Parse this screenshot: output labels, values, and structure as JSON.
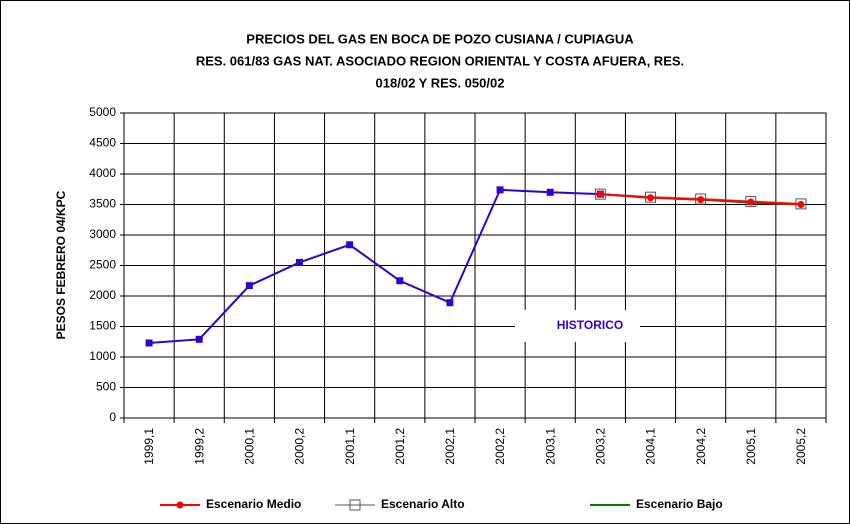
{
  "chart_data": {
    "type": "line",
    "title": [
      "PRECIOS DEL GAS EN BOCA DE POZO CUSIANA / CUPIAGUA",
      "RES. 061/83 GAS NAT. ASOCIADO REGION ORIENTAL Y COSTA AFUERA, RES.",
      "018/02 Y RES. 050/02"
    ],
    "y_label": "PESOS FEBRERO 04/KPC",
    "categories": [
      "1999,1",
      "1999,2",
      "2000,1",
      "2000,2",
      "2001,1",
      "2001,2",
      "2002,1",
      "2002,2",
      "2003,1",
      "2003,2",
      "2004,1",
      "2004,2",
      "2005,1",
      "2005,2"
    ],
    "ylim": [
      0,
      5000
    ],
    "yticks": [
      0,
      500,
      1000,
      1500,
      2000,
      2500,
      3000,
      3500,
      4000,
      4500,
      5000
    ],
    "grid": true,
    "series": [
      {
        "name": "HISTORICO",
        "color": "#3300cc",
        "marker": "square",
        "legend": false,
        "values": [
          1230,
          1290,
          2170,
          2550,
          2840,
          2250,
          1890,
          3740,
          3700,
          3670,
          null,
          null,
          null,
          null
        ]
      },
      {
        "name": "Escenario Bajo",
        "color": "#008000",
        "marker": "none",
        "legend": true,
        "values": [
          null,
          null,
          null,
          null,
          null,
          null,
          null,
          null,
          null,
          3670,
          3610,
          3580,
          3530,
          3500
        ]
      },
      {
        "name": "Escenario Alto",
        "color": "#996633",
        "marker": "open-square",
        "legend": true,
        "values": [
          null,
          null,
          null,
          null,
          null,
          null,
          null,
          null,
          null,
          3670,
          3620,
          3590,
          3550,
          3510
        ]
      },
      {
        "name": "Escenario Medio",
        "color": "#ff0000",
        "marker": "circle",
        "legend": true,
        "values": [
          null,
          null,
          null,
          null,
          null,
          null,
          null,
          null,
          null,
          3670,
          3610,
          3580,
          3540,
          3500
        ]
      }
    ]
  }
}
